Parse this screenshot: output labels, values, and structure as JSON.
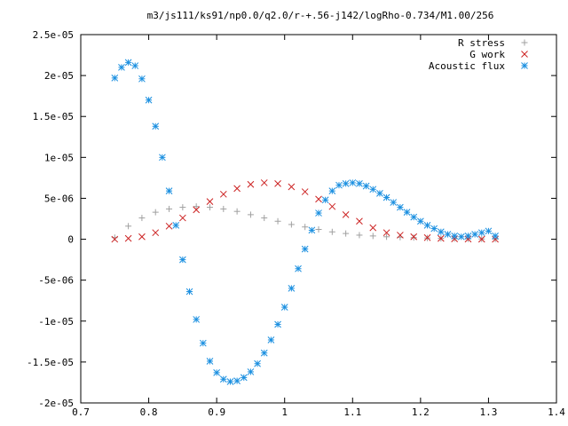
{
  "chart_data": {
    "type": "scatter",
    "title": "m3/js111/ks91/np0.0/q2.0/r-+.56-j142/logRho-0.734/M1.00/256",
    "xlabel": "",
    "ylabel": "",
    "xlim": [
      0.7,
      1.4
    ],
    "ylim": [
      -2e-05,
      2.5e-05
    ],
    "x_ticks": [
      "0.7",
      "0.8",
      "0.9",
      "1",
      "1.1",
      "1.2",
      "1.3",
      "1.4"
    ],
    "y_ticks": [
      "-2e-05",
      "-1.5e-05",
      "-1e-05",
      "-5e-06",
      "0",
      "5e-06",
      "1e-05",
      "1.5e-05",
      "2e-05",
      "2.5e-05"
    ],
    "grid": false,
    "legend_position": "top-right",
    "series": [
      {
        "name": "R stress",
        "marker": "+",
        "color": "#a0a0a0",
        "x": [
          0.75,
          0.77,
          0.79,
          0.81,
          0.83,
          0.85,
          0.87,
          0.89,
          0.91,
          0.93,
          0.95,
          0.97,
          0.99,
          1.01,
          1.03,
          1.05,
          1.07,
          1.09,
          1.11,
          1.13,
          1.15,
          1.17,
          1.19,
          1.21,
          1.23,
          1.25,
          1.27,
          1.29,
          1.31
        ],
        "y": [
          2e-07,
          1.6e-06,
          2.6e-06,
          3.3e-06,
          3.7e-06,
          3.9e-06,
          4e-06,
          3.9e-06,
          3.7e-06,
          3.4e-06,
          3e-06,
          2.6e-06,
          2.2e-06,
          1.8e-06,
          1.5e-06,
          1.2e-06,
          9e-07,
          7e-07,
          5e-07,
          4e-07,
          3e-07,
          2.5e-07,
          2e-07,
          1.5e-07,
          1e-07,
          8e-08,
          5e-08,
          3e-08,
          2e-08
        ]
      },
      {
        "name": "G work",
        "marker": "x",
        "color": "#cc2222",
        "x": [
          0.75,
          0.77,
          0.79,
          0.81,
          0.83,
          0.85,
          0.87,
          0.89,
          0.91,
          0.93,
          0.95,
          0.97,
          0.99,
          1.01,
          1.03,
          1.05,
          1.07,
          1.09,
          1.11,
          1.13,
          1.15,
          1.17,
          1.19,
          1.21,
          1.23,
          1.25,
          1.27,
          1.29,
          1.31
        ],
        "y": [
          0.0,
          1e-07,
          3e-07,
          8e-07,
          1.6e-06,
          2.6e-06,
          3.6e-06,
          4.6e-06,
          5.5e-06,
          6.2e-06,
          6.7e-06,
          6.9e-06,
          6.8e-06,
          6.4e-06,
          5.8e-06,
          4.9e-06,
          4e-06,
          3e-06,
          2.2e-06,
          1.4e-06,
          8e-07,
          5e-07,
          3e-07,
          2e-07,
          1e-07,
          5e-08,
          2e-08,
          1e-08,
          0.0
        ]
      },
      {
        "name": "Acoustic flux",
        "marker": "*",
        "color": "#1a8fe0",
        "x": [
          0.75,
          0.76,
          0.77,
          0.78,
          0.79,
          0.8,
          0.81,
          0.82,
          0.83,
          0.84,
          0.85,
          0.86,
          0.87,
          0.88,
          0.89,
          0.9,
          0.91,
          0.92,
          0.93,
          0.94,
          0.95,
          0.96,
          0.97,
          0.98,
          0.99,
          1.0,
          1.01,
          1.02,
          1.03,
          1.04,
          1.05,
          1.06,
          1.07,
          1.08,
          1.09,
          1.1,
          1.11,
          1.12,
          1.13,
          1.14,
          1.15,
          1.16,
          1.17,
          1.18,
          1.19,
          1.2,
          1.21,
          1.22,
          1.23,
          1.24,
          1.25,
          1.26,
          1.27,
          1.28,
          1.29,
          1.3,
          1.31
        ],
        "y": [
          1.97e-05,
          2.1e-05,
          2.16e-05,
          2.12e-05,
          1.96e-05,
          1.7e-05,
          1.38e-05,
          1e-05,
          5.9e-06,
          1.7e-06,
          -2.5e-06,
          -6.4e-06,
          -9.8e-06,
          -1.27e-05,
          -1.49e-05,
          -1.63e-05,
          -1.71e-05,
          -1.74e-05,
          -1.73e-05,
          -1.69e-05,
          -1.62e-05,
          -1.52e-05,
          -1.39e-05,
          -1.23e-05,
          -1.04e-05,
          -8.3e-06,
          -6e-06,
          -3.6e-06,
          -1.2e-06,
          1.1e-06,
          3.2e-06,
          4.8e-06,
          5.9e-06,
          6.6e-06,
          6.8e-06,
          6.9e-06,
          6.8e-06,
          6.5e-06,
          6.1e-06,
          5.6e-06,
          5.1e-06,
          4.5e-06,
          3.9e-06,
          3.3e-06,
          2.7e-06,
          2.2e-06,
          1.7e-06,
          1.3e-06,
          9e-07,
          6e-07,
          4e-07,
          3e-07,
          4e-07,
          6e-07,
          8e-07,
          1e-06,
          4e-07
        ]
      }
    ]
  }
}
